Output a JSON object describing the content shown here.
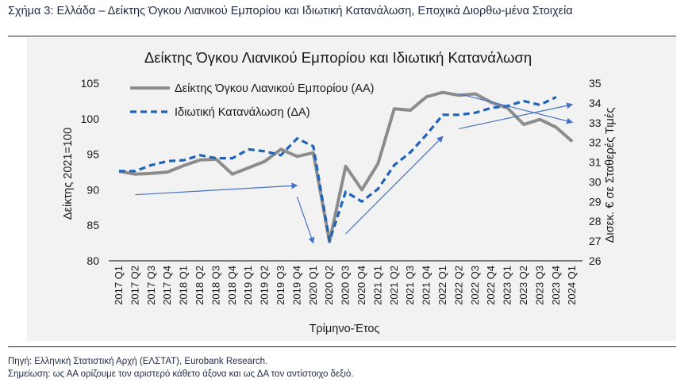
{
  "figure": {
    "heading": "Σχήμα 3: Ελλάδα – Δείκτης Όγκου Λιανικού Εμπορίου και Ιδιωτική Κατανάλωση, Εποχικά Διορθω-μένα Στοιχεία",
    "source": "Πηγή: Ελληνική Στατιστική Αρχή (ΕΛΣΤΑΤ), Eurobank Research.",
    "remark": "Σημείωση: ως ΑΑ ορίζουμε τον αριστερό κάθετο άξονα και ως ΔΑ τον αντίστοιχο δεξιό."
  },
  "chart_data": {
    "type": "line",
    "title": "Δείκτης Όγκου Λιανικού Εμπορίου και Ιδιωτική Κατανάλωση",
    "xlabel": "Τρίμηνο-Έτος",
    "ylabel": "Δείκτης 2021=100",
    "y2label": "Δισεκ. € σε Σταθερές Τιμές",
    "ylim": [
      80,
      105
    ],
    "y2lim": [
      26,
      35
    ],
    "yticks": [
      "80",
      "85",
      "90",
      "95",
      "100",
      "105"
    ],
    "y2ticks": [
      "26",
      "27",
      "28",
      "29",
      "30",
      "31",
      "32",
      "33",
      "34",
      "35"
    ],
    "legend_position": "top-left",
    "grid": false,
    "categories": [
      "2017 Q1",
      "2017 Q2",
      "2017 Q3",
      "2017 Q4",
      "2018 Q1",
      "2018 Q2",
      "2018 Q3",
      "2018 Q4",
      "2019 Q1",
      "2019 Q2",
      "2019 Q3",
      "2019 Q4",
      "2020 Q1",
      "2020 Q2",
      "2020 Q3",
      "2020 Q4",
      "2021 Q1",
      "2021 Q2",
      "2021 Q3",
      "2021 Q4",
      "2022 Q1",
      "2022 Q2",
      "2022 Q3",
      "2022 Q4",
      "2023 Q1",
      "2023 Q2",
      "2023 Q3",
      "2023 Q4",
      "2024 Q1"
    ],
    "series": [
      {
        "name": "Δείκτης Όγκου Λιανικού Εμπορίου (ΑΑ)",
        "axis": "left",
        "color": "#8c8c8c",
        "style": "solid",
        "values": [
          92.6,
          92.2,
          92.3,
          92.5,
          93.4,
          94.2,
          94.3,
          92.2,
          93.1,
          94.0,
          95.7,
          94.7,
          95.2,
          82.7,
          93.3,
          90.0,
          93.7,
          101.4,
          101.2,
          103.1,
          103.7,
          103.3,
          103.5,
          102.3,
          101.5,
          99.2,
          99.9,
          98.8,
          96.8
        ]
      },
      {
        "name": "Ιδιωτική Κατανάλωση (ΔΑ)",
        "axis": "right",
        "color": "#1f63b8",
        "style": "dashed",
        "values": [
          30.55,
          30.55,
          30.85,
          31.05,
          31.1,
          31.35,
          31.2,
          31.2,
          31.65,
          31.55,
          31.35,
          32.2,
          31.8,
          27.0,
          29.5,
          29.0,
          29.65,
          30.85,
          31.5,
          32.4,
          33.4,
          33.4,
          33.5,
          33.75,
          33.85,
          34.1,
          33.9,
          34.3,
          null
        ]
      }
    ],
    "trend_arrows": [
      {
        "from": [
          "2017 Q2",
          89.3
        ],
        "to": [
          "2019 Q4",
          90.6
        ]
      },
      {
        "from": [
          "2019 Q4",
          89.0
        ],
        "to": [
          "2020 Q1",
          82.5
        ]
      },
      {
        "from": [
          "2020 Q3",
          83.8
        ],
        "to": [
          "2022 Q1",
          97.5
        ]
      },
      {
        "from": [
          "2022 Q2",
          98.6
        ],
        "to": [
          "2024 Q1",
          102.0
        ]
      },
      {
        "from": [
          "2022 Q2",
          103.5
        ],
        "to": [
          "2024 Q1",
          99.5
        ]
      }
    ]
  }
}
